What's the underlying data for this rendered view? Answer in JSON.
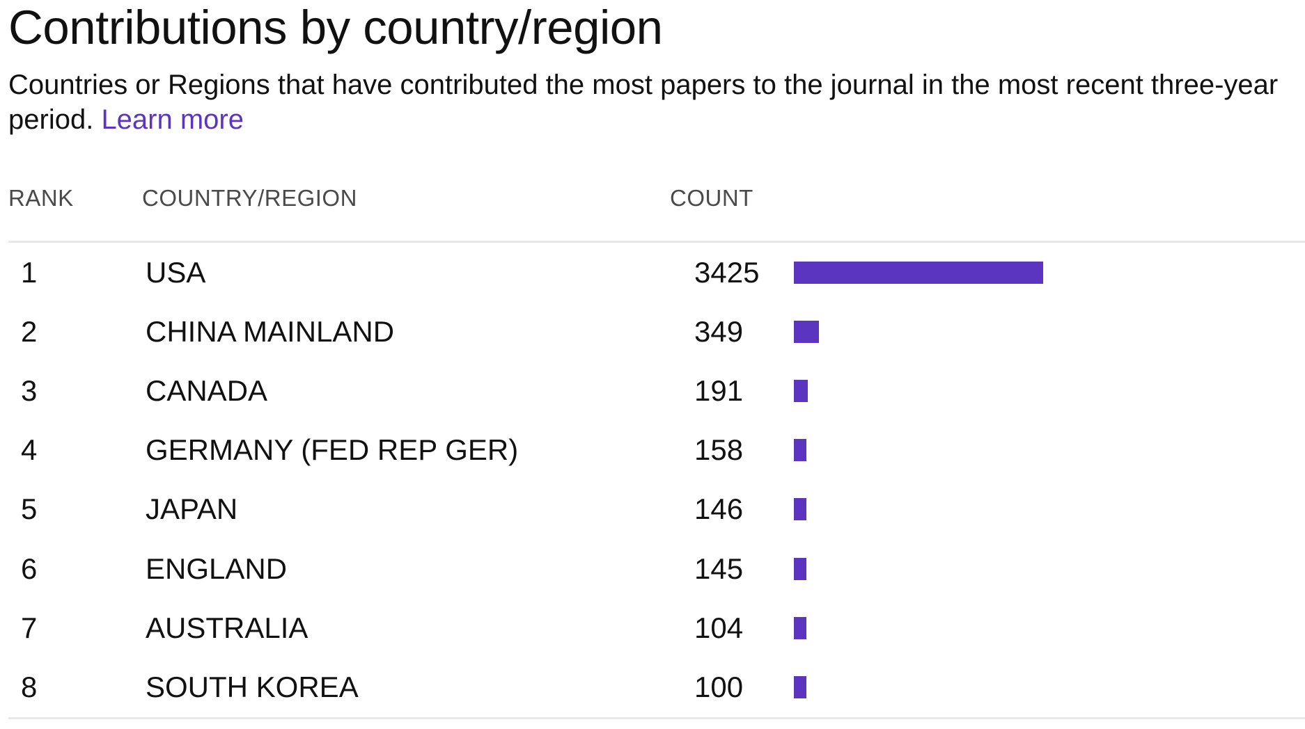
{
  "header": {
    "title": "Contributions by country/region",
    "description": "Countries or Regions that have contributed the most papers to the journal in the most recent three-year period.",
    "learn_more": "Learn more"
  },
  "table": {
    "columns": {
      "rank": "RANK",
      "country": "COUNTRY/REGION",
      "count": "COUNT"
    },
    "bar_max": 3425,
    "rows": [
      {
        "rank": "1",
        "country": "USA",
        "count": 3425
      },
      {
        "rank": "2",
        "country": "CHINA MAINLAND",
        "count": 349
      },
      {
        "rank": "3",
        "country": "CANADA",
        "count": 191
      },
      {
        "rank": "4",
        "country": "GERMANY (FED REP GER)",
        "count": 158
      },
      {
        "rank": "5",
        "country": "JAPAN",
        "count": 146
      },
      {
        "rank": "6",
        "country": "ENGLAND",
        "count": 145
      },
      {
        "rank": "7",
        "country": "AUSTRALIA",
        "count": 104
      },
      {
        "rank": "8",
        "country": "SOUTH KOREA",
        "count": 100
      }
    ]
  },
  "colors": {
    "accent": "#5b35c0",
    "divider": "#e8e8e8",
    "header_text": "#4a4a4a"
  }
}
